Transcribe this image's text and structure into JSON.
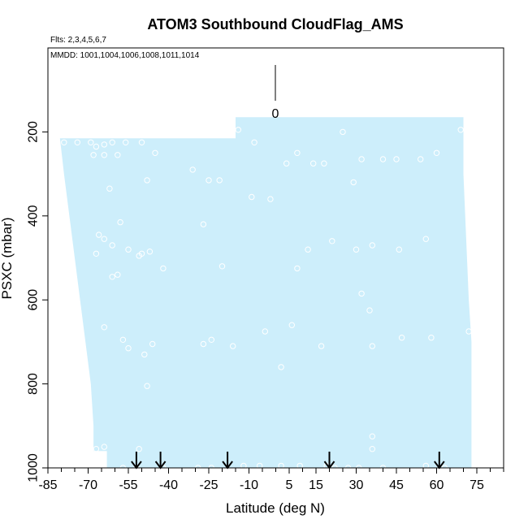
{
  "chart_data": {
    "type": "scatter",
    "title": "ATOM3 Southbound CloudFlag_AMS",
    "flights_label": "Flts: 2,3,4,5,6,7",
    "mmdd_label": "MMDD: 1001,1004,1006,1008,1011,1014",
    "xlabel": "Latitude (deg N)",
    "ylabel": "PSXC (mbar)",
    "xlim": [
      -85,
      85
    ],
    "ylim": [
      1000,
      0
    ],
    "x_major_ticks": [
      -85,
      -70,
      -55,
      -40,
      -25,
      -10,
      5,
      15,
      30,
      45,
      60,
      75
    ],
    "x_minor_ticks": [
      -80,
      -75,
      -65,
      -60,
      -50,
      -45,
      -35,
      -30,
      -20,
      -15,
      -5,
      0,
      10,
      20,
      25,
      35,
      40,
      50,
      55,
      65,
      70,
      80,
      85
    ],
    "y_ticks": [
      200,
      400,
      600,
      800,
      1000
    ],
    "legend": {
      "label": "0",
      "color": "#000000"
    },
    "curtain": {
      "color": "#cdeefb",
      "left_edge": [
        [
          -80.5,
          215
        ],
        [
          -79,
          300
        ],
        [
          -77,
          400
        ],
        [
          -75,
          500
        ],
        [
          -73,
          600
        ],
        [
          -71,
          700
        ],
        [
          -69,
          800
        ],
        [
          -68,
          900
        ],
        [
          -68,
          960
        ],
        [
          -63,
          960
        ],
        [
          -63,
          1000
        ]
      ],
      "top_step": [
        [
          -80.5,
          215
        ],
        [
          -15,
          215
        ],
        [
          -15,
          165
        ],
        [
          70,
          165
        ]
      ],
      "right_edge": [
        [
          70,
          165
        ],
        [
          70,
          300
        ],
        [
          71,
          450
        ],
        [
          72,
          600
        ],
        [
          73,
          700
        ],
        [
          73,
          1000
        ]
      ]
    },
    "series": [
      {
        "marker": "open-circle",
        "color": "#ffffff",
        "points": [
          [
            -79,
            225
          ],
          [
            -74,
            225
          ],
          [
            -69,
            225
          ],
          [
            -67,
            235
          ],
          [
            -64,
            230
          ],
          [
            -61,
            225
          ],
          [
            -56,
            225
          ],
          [
            -50,
            225
          ],
          [
            -68,
            255
          ],
          [
            -64,
            255
          ],
          [
            -59,
            255
          ],
          [
            -45,
            250
          ],
          [
            -48,
            315
          ],
          [
            -31,
            290
          ],
          [
            -25,
            315
          ],
          [
            -21,
            315
          ],
          [
            -62,
            335
          ],
          [
            -58,
            415
          ],
          [
            -27,
            420
          ],
          [
            -66,
            445
          ],
          [
            -64,
            455
          ],
          [
            -61,
            470
          ],
          [
            -67,
            490
          ],
          [
            -51,
            495
          ],
          [
            -50,
            490
          ],
          [
            -47,
            485
          ],
          [
            -55,
            480
          ],
          [
            -59,
            540
          ],
          [
            -61,
            545
          ],
          [
            -42,
            525
          ],
          [
            -20,
            520
          ],
          [
            -8,
            225
          ],
          [
            4,
            275
          ],
          [
            8,
            250
          ],
          [
            14,
            275
          ],
          [
            18,
            275
          ],
          [
            25,
            200
          ],
          [
            29,
            320
          ],
          [
            32,
            265
          ],
          [
            40,
            265
          ],
          [
            45,
            265
          ],
          [
            54,
            265
          ],
          [
            60,
            250
          ],
          [
            69,
            195
          ],
          [
            12,
            480
          ],
          [
            21,
            460
          ],
          [
            30,
            480
          ],
          [
            36,
            470
          ],
          [
            46,
            480
          ],
          [
            56,
            455
          ],
          [
            -2,
            360
          ],
          [
            -9,
            355
          ],
          [
            -14,
            195
          ],
          [
            8,
            525
          ],
          [
            32,
            585
          ],
          [
            35,
            625
          ],
          [
            -64,
            665
          ],
          [
            -57,
            695
          ],
          [
            -55,
            715
          ],
          [
            -49,
            730
          ],
          [
            -46,
            705
          ],
          [
            -27,
            705
          ],
          [
            -24,
            695
          ],
          [
            -16,
            710
          ],
          [
            -4,
            675
          ],
          [
            6,
            660
          ],
          [
            17,
            710
          ],
          [
            36,
            710
          ],
          [
            47,
            690
          ],
          [
            58,
            690
          ],
          [
            72,
            675
          ],
          [
            2,
            760
          ],
          [
            -48,
            805
          ],
          [
            -64,
            950
          ],
          [
            -67,
            955
          ],
          [
            -51,
            955
          ],
          [
            -57,
            1000
          ],
          [
            -52,
            1000
          ],
          [
            -42,
            1000
          ],
          [
            -29,
            1000
          ],
          [
            -24,
            1000
          ],
          [
            -12,
            995
          ],
          [
            -6,
            995
          ],
          [
            2,
            995
          ],
          [
            9,
            995
          ],
          [
            19,
            995
          ],
          [
            22,
            1000
          ],
          [
            27,
            1000
          ],
          [
            31,
            1000
          ],
          [
            36,
            925
          ],
          [
            36,
            955
          ],
          [
            40,
            1000
          ],
          [
            56,
            995
          ],
          [
            63,
            1000
          ]
        ]
      }
    ],
    "arrows": [
      -52,
      -43,
      -18,
      20,
      61
    ]
  }
}
